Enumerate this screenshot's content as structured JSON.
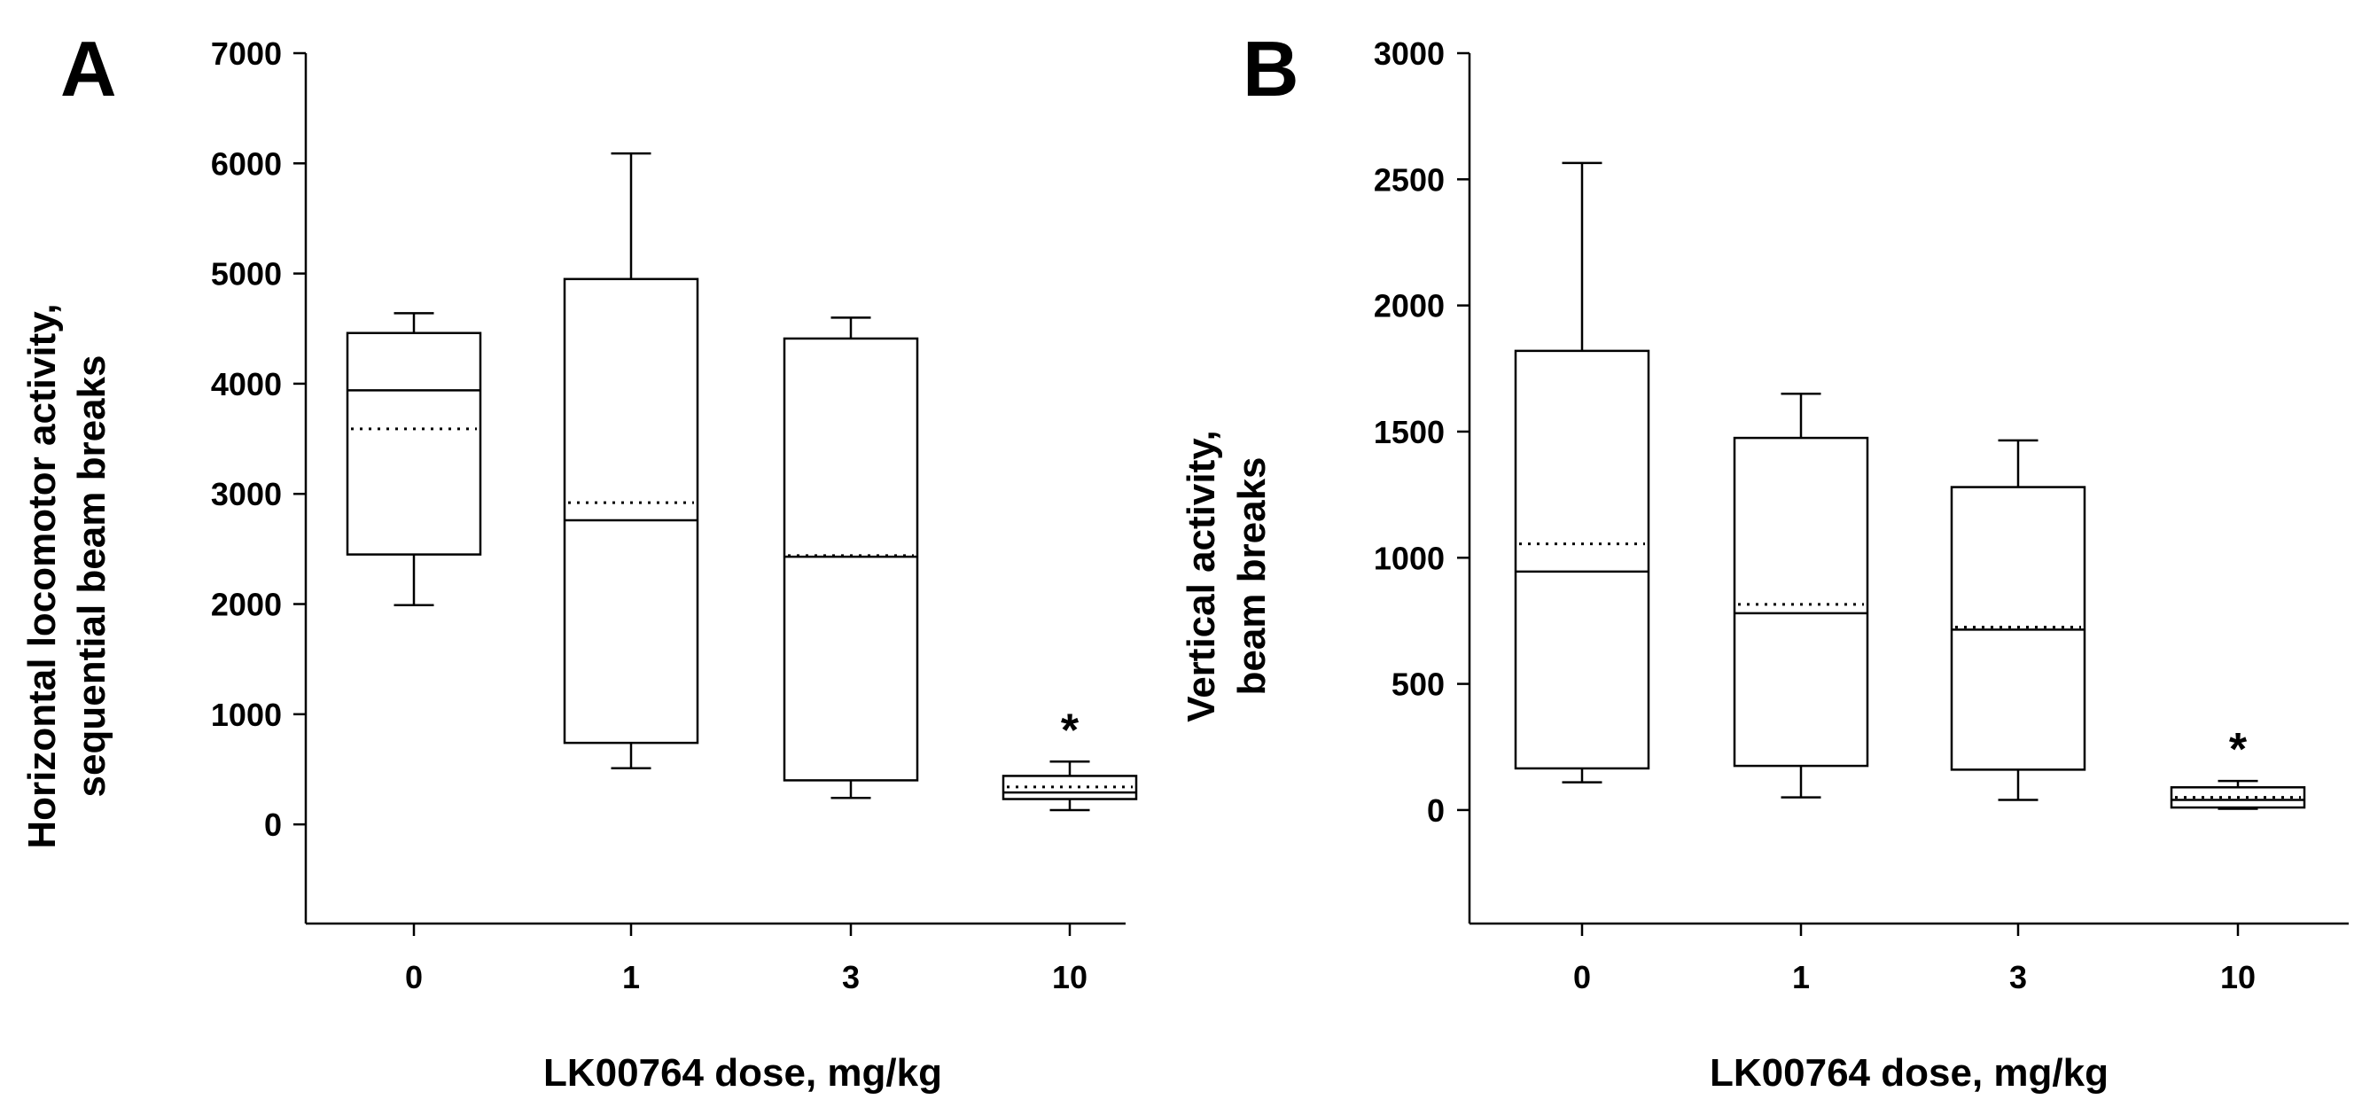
{
  "chart_data": [
    {
      "panel": "A",
      "type": "box",
      "xlabel": "LK00764 dose, mg/kg",
      "ylabel_lines": [
        "Horizontal locomotor activity,",
        "sequential beam breaks"
      ],
      "categories": [
        "0",
        "1",
        "3",
        "10"
      ],
      "ylim": [
        -900,
        7000
      ],
      "yticks": [
        0,
        1000,
        2000,
        3000,
        4000,
        5000,
        6000,
        7000
      ],
      "boxes": [
        {
          "category": "0",
          "whisker_low": 1990,
          "q1": 2450,
          "median": 3940,
          "mean": 3590,
          "q3": 4460,
          "whisker_high": 4640
        },
        {
          "category": "1",
          "whisker_low": 510,
          "q1": 740,
          "median": 2760,
          "mean": 2920,
          "q3": 4950,
          "whisker_high": 6090
        },
        {
          "category": "3",
          "whisker_low": 240,
          "q1": 400,
          "median": 2430,
          "mean": 2440,
          "q3": 4410,
          "whisker_high": 4600
        },
        {
          "category": "10",
          "whisker_low": 130,
          "q1": 230,
          "median": 290,
          "mean": 340,
          "q3": 440,
          "whisker_high": 570
        }
      ],
      "annotations": [
        {
          "category": "10",
          "text": "*"
        }
      ]
    },
    {
      "panel": "B",
      "type": "box",
      "xlabel": "LK00764 dose, mg/kg",
      "ylabel_lines": [
        "Vertical activity,",
        "beam breaks"
      ],
      "categories": [
        "0",
        "1",
        "3",
        "10"
      ],
      "ylim": [
        -450,
        3000
      ],
      "yticks": [
        0,
        500,
        1000,
        1500,
        2000,
        2500,
        3000
      ],
      "boxes": [
        {
          "category": "0",
          "whisker_low": 110,
          "q1": 165,
          "median": 945,
          "mean": 1055,
          "q3": 1820,
          "whisker_high": 2565
        },
        {
          "category": "1",
          "whisker_low": 50,
          "q1": 175,
          "median": 780,
          "mean": 815,
          "q3": 1475,
          "whisker_high": 1650
        },
        {
          "category": "3",
          "whisker_low": 40,
          "q1": 160,
          "median": 715,
          "mean": 725,
          "q3": 1280,
          "whisker_high": 1465
        },
        {
          "category": "10",
          "whisker_low": 5,
          "q1": 10,
          "median": 40,
          "mean": 50,
          "q3": 90,
          "whisker_high": 115
        }
      ],
      "annotations": [
        {
          "category": "10",
          "text": "*"
        }
      ]
    }
  ]
}
